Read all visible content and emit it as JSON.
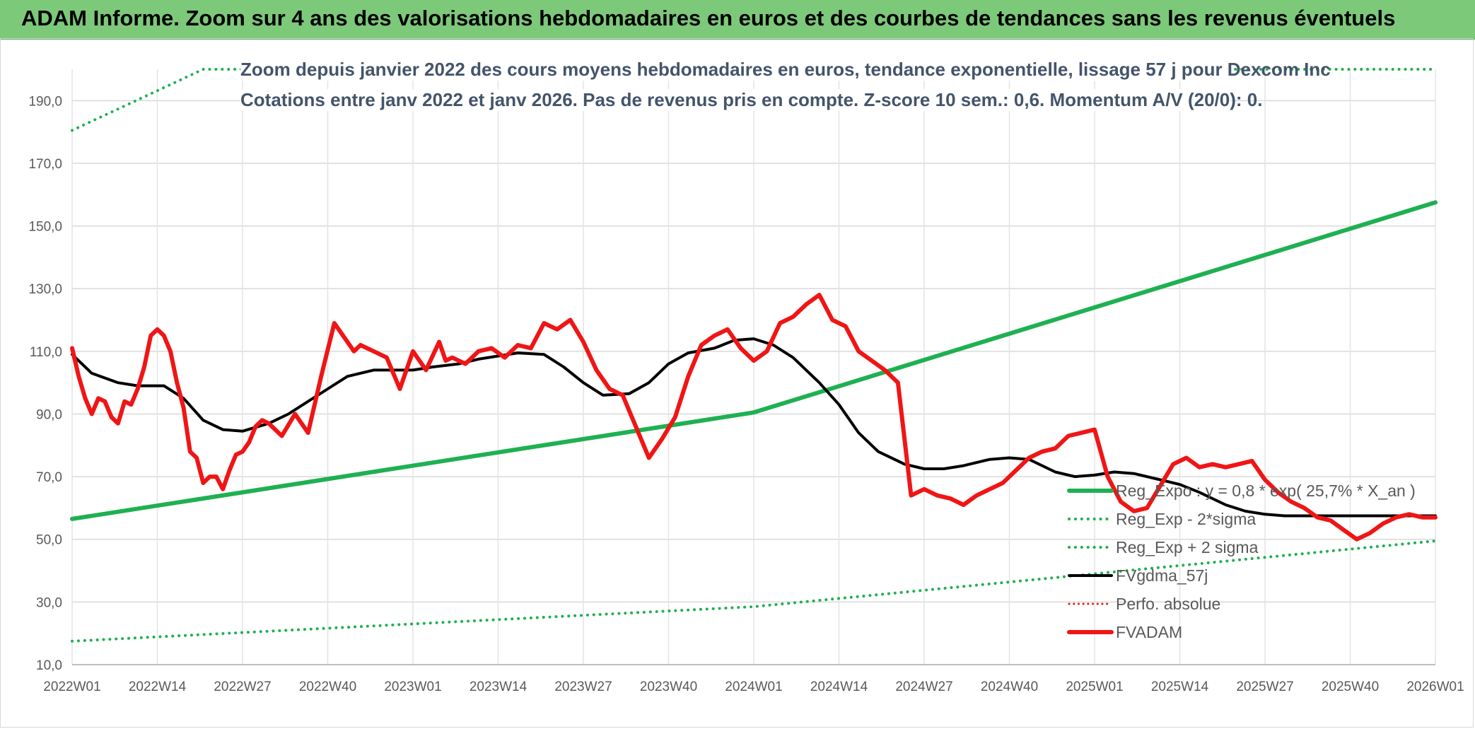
{
  "banner": {
    "title": "ADAM Informe. Zoom sur 4 ans des valorisations hebdomadaires en euros et des courbes de tendances sans les revenus éventuels"
  },
  "chart_data": {
    "type": "line",
    "title": "Zoom depuis janvier 2022 des cours moyens hebdomadaires en euros, tendance exponentielle, lissage 57 j pour Dexcom Inc",
    "subtitle": "Cotations entre janv 2022 et janv 2026. Pas de revenus pris en compte. Z-score 10 sem.: 0,6. Momentum A/V (20/0): 0.",
    "xlabel": "",
    "ylabel": "",
    "ylim": [
      10,
      200
    ],
    "grid": true,
    "y_ticks": [
      "10,0",
      "30,0",
      "50,0",
      "70,0",
      "90,0",
      "110,0",
      "130,0",
      "150,0",
      "170,0",
      "190,0"
    ],
    "y_tick_values": [
      10,
      30,
      50,
      70,
      90,
      110,
      130,
      150,
      170,
      190
    ],
    "x_ticks": [
      "2022W01",
      "2022W14",
      "2022W27",
      "2022W40",
      "2023W01",
      "2023W14",
      "2023W27",
      "2023W40",
      "2024W01",
      "2024W14",
      "2024W27",
      "2024W40",
      "2025W01",
      "2025W14",
      "2025W27",
      "2025W40",
      "2026W01"
    ],
    "week_count": 209,
    "legend_position": "right",
    "series": [
      {
        "name": "Reg_Expo : y = 0,8 * exp( 25,7% *  X_an )",
        "color": "#1fb052",
        "style": "solid",
        "width": 6,
        "x": [
          0,
          104,
          208
        ],
        "values": [
          56.5,
          90.5,
          157.5
        ]
      },
      {
        "name": "Reg_Exp - 2*sigma",
        "color": "#1fb052",
        "style": "dotted",
        "width": 4,
        "x": [
          0,
          104,
          208
        ],
        "values": [
          17.5,
          28.5,
          49.5
        ]
      },
      {
        "name": "Reg_Exp + 2 sigma",
        "color": "#1fb052",
        "style": "dotted",
        "width": 4,
        "x": [
          0,
          20,
          208
        ],
        "values": [
          180.5,
          200,
          200
        ]
      },
      {
        "name": "FVgdma_57j",
        "color": "#000000",
        "style": "solid",
        "width": 4,
        "x": [
          0,
          3,
          7,
          10,
          14,
          17,
          20,
          23,
          26,
          30,
          33,
          36,
          39,
          42,
          46,
          49,
          52,
          55,
          59,
          62,
          65,
          68,
          72,
          75,
          78,
          81,
          85,
          88,
          91,
          94,
          98,
          101,
          104,
          107,
          110,
          114,
          117,
          120,
          123,
          127,
          130,
          133,
          136,
          140,
          143,
          146,
          150,
          153,
          156,
          159,
          162,
          166,
          169,
          172,
          176,
          179,
          182,
          185,
          188,
          192,
          195,
          198,
          201,
          204,
          208
        ],
        "values": [
          109,
          103,
          100,
          99,
          99,
          95,
          88,
          85,
          84.5,
          87,
          90,
          94,
          98,
          102,
          104,
          104,
          104,
          105,
          106,
          107.5,
          108.5,
          109.5,
          109,
          105,
          100,
          96,
          96.5,
          100,
          106,
          109.5,
          111,
          113.5,
          114,
          112,
          108,
          100,
          93,
          84,
          78,
          74,
          72.5,
          72.5,
          73.5,
          75.5,
          76,
          75.5,
          71.5,
          70,
          70.5,
          71.5,
          71,
          69,
          67.5,
          65,
          61,
          59,
          58,
          57.5,
          57.5,
          57.5,
          57.5,
          57.5,
          57.5,
          57.5,
          57.5
        ]
      },
      {
        "name": "Perfo. absolue",
        "color": "#e31a1c",
        "style": "dotted",
        "width": 3,
        "x": [],
        "values": []
      },
      {
        "name": "FVADAM",
        "color": "#f01515",
        "style": "solid",
        "width": 6,
        "x": [
          0,
          1,
          2,
          3,
          4,
          5,
          6,
          7,
          8,
          9,
          10,
          11,
          12,
          13,
          14,
          15,
          16,
          17,
          18,
          19,
          20,
          21,
          22,
          23,
          24,
          25,
          26,
          27,
          28,
          29,
          30,
          32,
          34,
          36,
          38,
          40,
          42,
          43,
          44,
          46,
          48,
          50,
          52,
          54,
          56,
          57,
          58,
          60,
          62,
          64,
          66,
          68,
          70,
          72,
          74,
          76,
          78,
          80,
          82,
          84,
          86,
          88,
          90,
          92,
          94,
          96,
          98,
          100,
          102,
          104,
          106,
          108,
          110,
          112,
          114,
          116,
          118,
          120,
          122,
          124,
          126,
          128,
          130,
          132,
          134,
          136,
          138,
          140,
          142,
          144,
          146,
          148,
          150,
          152,
          154,
          156,
          158,
          160,
          162,
          164,
          166,
          168,
          170,
          172,
          174,
          176,
          178,
          180,
          182,
          184,
          186,
          188,
          190,
          192,
          194,
          196,
          198,
          200,
          202,
          204,
          206,
          208
        ],
        "values": [
          111,
          102,
          95,
          90,
          95,
          94,
          89,
          87,
          94,
          93,
          98,
          105,
          115,
          117,
          115,
          110,
          100,
          92,
          78,
          76,
          68,
          70,
          70,
          66,
          72,
          77,
          78,
          81,
          86,
          88,
          87,
          83,
          90,
          84,
          102,
          119,
          113,
          110,
          112,
          110,
          108,
          98,
          110,
          104,
          113,
          107,
          108,
          106,
          110,
          111,
          108,
          112,
          111,
          119,
          117,
          120,
          113,
          104,
          98,
          96,
          86,
          76,
          82,
          89,
          102,
          112,
          115,
          117,
          111,
          107,
          110,
          119,
          121,
          125,
          128,
          120,
          118,
          110,
          107,
          104,
          100,
          64,
          66,
          64,
          63,
          61,
          64,
          66,
          68,
          72,
          76,
          78,
          79,
          83,
          84,
          85,
          70,
          62,
          59,
          60,
          67,
          74,
          76,
          73,
          74,
          73,
          74,
          75,
          69,
          65,
          62,
          60,
          57,
          56,
          53,
          50,
          52,
          55,
          57,
          58,
          57,
          57
        ]
      }
    ]
  }
}
